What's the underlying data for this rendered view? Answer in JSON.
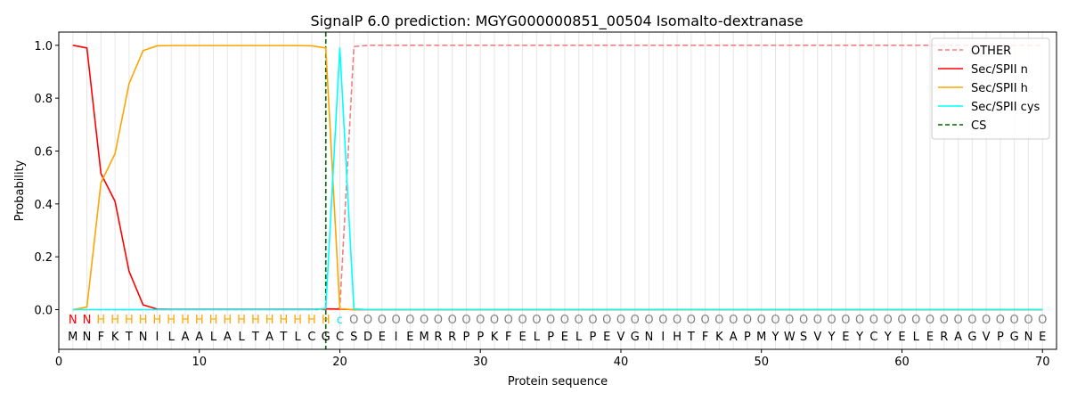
{
  "chart_data": {
    "type": "line",
    "title": "SignalP 6.0 prediction: MGYG000000851_00504 Isomalto-dextranase",
    "xlabel": "Protein sequence",
    "ylabel": "Probability",
    "xlim": [
      0,
      71
    ],
    "ylim": [
      -0.15,
      1.05
    ],
    "x_ticks": [
      0,
      10,
      20,
      30,
      40,
      50,
      60,
      70
    ],
    "y_ticks": [
      0.0,
      0.2,
      0.4,
      0.6,
      0.8,
      1.0
    ],
    "y_tick_labels": [
      "0.0",
      "0.2",
      "0.4",
      "0.6",
      "0.8",
      "1.0"
    ],
    "grid": "vertical lines at each residue",
    "legend_position": "top-right",
    "sequence": [
      "M",
      "N",
      "F",
      "K",
      "T",
      "N",
      "I",
      "L",
      "A",
      "A",
      "L",
      "A",
      "L",
      "T",
      "A",
      "T",
      "L",
      "C",
      "G",
      "C",
      "S",
      "D",
      "E",
      "I",
      "E",
      "M",
      "R",
      "R",
      "P",
      "P",
      "K",
      "F",
      "E",
      "L",
      "P",
      "E",
      "L",
      "P",
      "E",
      "V",
      "G",
      "N",
      "I",
      "H",
      "T",
      "F",
      "K",
      "A",
      "P",
      "M",
      "Y",
      "W",
      "S",
      "V",
      "Y",
      "E",
      "Y",
      "C",
      "Y",
      "E",
      "L",
      "E",
      "R",
      "A",
      "G",
      "V",
      "P",
      "G",
      "N",
      "E"
    ],
    "labels": [
      "N",
      "N",
      "H",
      "H",
      "H",
      "H",
      "H",
      "H",
      "H",
      "H",
      "H",
      "H",
      "H",
      "H",
      "H",
      "H",
      "H",
      "H",
      "H",
      "C",
      "O",
      "O",
      "O",
      "O",
      "O",
      "O",
      "O",
      "O",
      "O",
      "O",
      "O",
      "O",
      "O",
      "O",
      "O",
      "O",
      "O",
      "O",
      "O",
      "O",
      "O",
      "O",
      "O",
      "O",
      "O",
      "O",
      "O",
      "O",
      "O",
      "O",
      "O",
      "O",
      "O",
      "O",
      "O",
      "O",
      "O",
      "O",
      "O",
      "O",
      "O",
      "O",
      "O",
      "O",
      "O",
      "O",
      "O",
      "O",
      "O",
      "O"
    ],
    "label_colors": {
      "N": "#ff0000",
      "H": "#ffa500",
      "C": "#00e5ee",
      "O": "#808080"
    },
    "cleavage_site": 19,
    "series": [
      {
        "name": "OTHER",
        "color": "#f08080",
        "dash": "dashed",
        "values": [
          0,
          0,
          0,
          0,
          0,
          0,
          0,
          0,
          0,
          0,
          0,
          0,
          0,
          0,
          0,
          0,
          0,
          0,
          0,
          0.005,
          0.995,
          1,
          1,
          1,
          1,
          1,
          1,
          1,
          1,
          1,
          1,
          1,
          1,
          1,
          1,
          1,
          1,
          1,
          1,
          1,
          1,
          1,
          1,
          1,
          1,
          1,
          1,
          1,
          1,
          1,
          1,
          1,
          1,
          1,
          1,
          1,
          1,
          1,
          1,
          1,
          1,
          1,
          1,
          1,
          1,
          1,
          1,
          1,
          1,
          1
        ]
      },
      {
        "name": "Sec/SPII n",
        "color": "#ff0000",
        "dash": "solid",
        "values": [
          1.0,
          0.99,
          0.515,
          0.41,
          0.145,
          0.018,
          0.002,
          0.001,
          0.001,
          0.001,
          0.001,
          0.001,
          0.001,
          0.001,
          0.001,
          0.001,
          0.001,
          0.001,
          0.003,
          0.002,
          0,
          0,
          0,
          0,
          0,
          0,
          0,
          0,
          0,
          0,
          0,
          0,
          0,
          0,
          0,
          0,
          0,
          0,
          0,
          0,
          0,
          0,
          0,
          0,
          0,
          0,
          0,
          0,
          0,
          0,
          0,
          0,
          0,
          0,
          0,
          0,
          0,
          0,
          0,
          0,
          0,
          0,
          0,
          0,
          0,
          0,
          0,
          0,
          0,
          0
        ]
      },
      {
        "name": "Sec/SPII h",
        "color": "#ffa500",
        "dash": "solid",
        "values": [
          0,
          0.01,
          0.48,
          0.59,
          0.855,
          0.98,
          0.998,
          0.999,
          0.999,
          0.999,
          0.999,
          0.999,
          0.999,
          0.999,
          0.999,
          0.999,
          0.999,
          0.998,
          0.99,
          0.003,
          0,
          0,
          0,
          0,
          0,
          0,
          0,
          0,
          0,
          0,
          0,
          0,
          0,
          0,
          0,
          0,
          0,
          0,
          0,
          0,
          0,
          0,
          0,
          0,
          0,
          0,
          0,
          0,
          0,
          0,
          0,
          0,
          0,
          0,
          0,
          0,
          0,
          0,
          0,
          0,
          0,
          0,
          0,
          0,
          0,
          0,
          0,
          0,
          0,
          0
        ]
      },
      {
        "name": "Sec/SPII cys",
        "color": "#00ffff",
        "dash": "solid",
        "values": [
          0,
          0,
          0,
          0,
          0,
          0,
          0,
          0,
          0,
          0,
          0,
          0,
          0,
          0,
          0,
          0,
          0,
          0,
          0.005,
          0.99,
          0.003,
          0,
          0,
          0,
          0,
          0,
          0,
          0,
          0,
          0,
          0,
          0,
          0,
          0,
          0,
          0,
          0,
          0,
          0,
          0,
          0,
          0,
          0,
          0,
          0,
          0,
          0,
          0,
          0,
          0,
          0,
          0,
          0,
          0,
          0,
          0,
          0,
          0,
          0,
          0,
          0,
          0,
          0,
          0,
          0,
          0,
          0,
          0,
          0,
          0
        ]
      }
    ],
    "cs_legend": {
      "name": "CS",
      "color": "#006400",
      "dash": "dashed"
    }
  }
}
